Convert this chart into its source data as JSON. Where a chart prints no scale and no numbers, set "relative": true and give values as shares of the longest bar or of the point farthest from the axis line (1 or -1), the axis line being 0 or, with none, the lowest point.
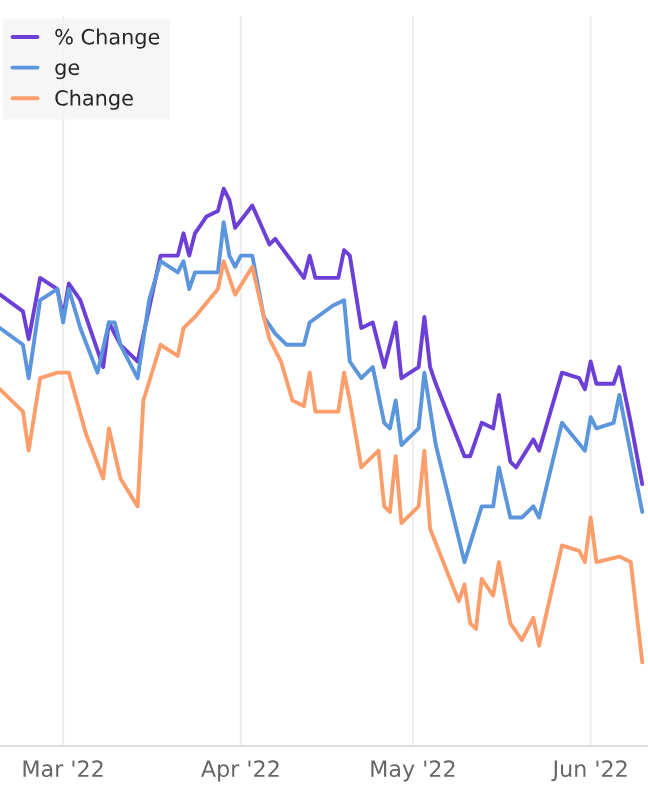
{
  "chart_data": {
    "type": "line",
    "relative": true,
    "grid": "x",
    "legend": "top left",
    "marker": "none",
    "line_style": "solid",
    "xlim": [
      "2022-02-18",
      "2022-06-11"
    ],
    "xticks": [
      {
        "value": "2022-03-01",
        "label": "Mar '22"
      },
      {
        "value": "2022-04-01",
        "label": "Apr '22"
      },
      {
        "value": "2022-05-01",
        "label": "May '22"
      },
      {
        "value": "2022-06-01",
        "label": "Jun '22"
      }
    ],
    "series": [
      {
        "name": "% Change",
        "color": "#6c3fd6",
        "x": [
          "2022-02-18",
          "2022-02-22",
          "2022-02-23",
          "2022-02-25",
          "2022-02-28",
          "2022-03-01",
          "2022-03-02",
          "2022-03-04",
          "2022-03-08",
          "2022-03-09",
          "2022-03-11",
          "2022-03-14",
          "2022-03-18",
          "2022-03-21",
          "2022-03-22",
          "2022-03-23",
          "2022-03-24",
          "2022-03-26",
          "2022-03-28",
          "2022-03-29",
          "2022-03-30",
          "2022-03-31",
          "2022-04-03",
          "2022-04-06",
          "2022-04-07",
          "2022-04-12",
          "2022-04-13",
          "2022-04-14",
          "2022-04-18",
          "2022-04-19",
          "2022-04-20",
          "2022-04-22",
          "2022-04-24",
          "2022-04-26",
          "2022-04-28",
          "2022-04-29",
          "2022-05-02",
          "2022-05-03",
          "2022-05-04",
          "2022-05-05",
          "2022-05-10",
          "2022-05-11",
          "2022-05-13",
          "2022-05-15",
          "2022-05-16",
          "2022-05-18",
          "2022-05-19",
          "2022-05-22",
          "2022-05-23",
          "2022-05-27",
          "2022-05-30",
          "2022-05-31",
          "2022-06-01",
          "2022-06-02",
          "2022-06-05",
          "2022-06-06",
          "2022-06-08",
          "2022-06-10"
        ],
        "values": [
          0.81,
          0.78,
          0.73,
          0.84,
          0.82,
          0.77,
          0.83,
          0.8,
          0.68,
          0.76,
          0.72,
          0.69,
          0.88,
          0.88,
          0.92,
          0.88,
          0.92,
          0.95,
          0.96,
          1,
          0.98,
          0.93,
          0.97,
          0.9,
          0.91,
          0.84,
          0.88,
          0.84,
          0.84,
          0.89,
          0.88,
          0.75,
          0.76,
          0.68,
          0.76,
          0.66,
          0.68,
          0.77,
          0.68,
          0.65,
          0.52,
          0.52,
          0.58,
          0.57,
          0.63,
          0.51,
          0.5,
          0.55,
          0.53,
          0.67,
          0.66,
          0.64,
          0.69,
          0.65,
          0.65,
          0.68,
          0.58,
          0.47
        ]
      },
      {
        "name": "ge",
        "color": "#5b95dd",
        "x": [
          "2022-02-18",
          "2022-02-22",
          "2022-02-23",
          "2022-02-25",
          "2022-02-28",
          "2022-03-01",
          "2022-03-02",
          "2022-03-04",
          "2022-03-07",
          "2022-03-09",
          "2022-03-10",
          "2022-03-11",
          "2022-03-14",
          "2022-03-16",
          "2022-03-18",
          "2022-03-21",
          "2022-03-22",
          "2022-03-23",
          "2022-03-24",
          "2022-03-28",
          "2022-03-29",
          "2022-03-30",
          "2022-03-31",
          "2022-04-01",
          "2022-04-03",
          "2022-04-05",
          "2022-04-07",
          "2022-04-09",
          "2022-04-12",
          "2022-04-13",
          "2022-04-17",
          "2022-04-19",
          "2022-04-20",
          "2022-04-22",
          "2022-04-24",
          "2022-04-26",
          "2022-04-27",
          "2022-04-28",
          "2022-04-29",
          "2022-05-02",
          "2022-05-03",
          "2022-05-05",
          "2022-05-10",
          "2022-05-13",
          "2022-05-15",
          "2022-05-16",
          "2022-05-18",
          "2022-05-20",
          "2022-05-22",
          "2022-05-23",
          "2022-05-27",
          "2022-05-31",
          "2022-06-01",
          "2022-06-02",
          "2022-06-05",
          "2022-06-06",
          "2022-06-10"
        ],
        "values": [
          0.75,
          0.72,
          0.66,
          0.8,
          0.82,
          0.76,
          0.82,
          0.75,
          0.67,
          0.76,
          0.76,
          0.72,
          0.66,
          0.8,
          0.87,
          0.85,
          0.87,
          0.82,
          0.85,
          0.85,
          0.94,
          0.88,
          0.86,
          0.88,
          0.88,
          0.77,
          0.74,
          0.72,
          0.72,
          0.76,
          0.79,
          0.8,
          0.69,
          0.66,
          0.68,
          0.58,
          0.57,
          0.62,
          0.54,
          0.57,
          0.67,
          0.54,
          0.33,
          0.43,
          0.43,
          0.5,
          0.41,
          0.41,
          0.43,
          0.41,
          0.58,
          0.53,
          0.59,
          0.57,
          0.58,
          0.63,
          0.42
        ]
      },
      {
        "name": "Change",
        "color": "#fc9e6c",
        "x": [
          "2022-02-18",
          "2022-02-22",
          "2022-02-23",
          "2022-02-25",
          "2022-02-28",
          "2022-03-02",
          "2022-03-05",
          "2022-03-08",
          "2022-03-09",
          "2022-03-11",
          "2022-03-14",
          "2022-03-15",
          "2022-03-18",
          "2022-03-21",
          "2022-03-22",
          "2022-03-24",
          "2022-03-28",
          "2022-03-29",
          "2022-03-30",
          "2022-03-31",
          "2022-04-03",
          "2022-04-05",
          "2022-04-06",
          "2022-04-08",
          "2022-04-10",
          "2022-04-12",
          "2022-04-13",
          "2022-04-14",
          "2022-04-18",
          "2022-04-19",
          "2022-04-20",
          "2022-04-22",
          "2022-04-25",
          "2022-04-26",
          "2022-04-27",
          "2022-04-28",
          "2022-04-29",
          "2022-05-02",
          "2022-05-03",
          "2022-05-04",
          "2022-05-09",
          "2022-05-10",
          "2022-05-11",
          "2022-05-12",
          "2022-05-13",
          "2022-05-15",
          "2022-05-16",
          "2022-05-18",
          "2022-05-20",
          "2022-05-22",
          "2022-05-23",
          "2022-05-27",
          "2022-05-30",
          "2022-05-31",
          "2022-06-01",
          "2022-06-02",
          "2022-06-06",
          "2022-06-08",
          "2022-06-10"
        ],
        "values": [
          0.64,
          0.6,
          0.53,
          0.66,
          0.67,
          0.67,
          0.56,
          0.48,
          0.57,
          0.48,
          0.43,
          0.62,
          0.72,
          0.7,
          0.75,
          0.77,
          0.82,
          0.87,
          0.84,
          0.81,
          0.86,
          0.77,
          0.73,
          0.69,
          0.62,
          0.61,
          0.67,
          0.6,
          0.6,
          0.67,
          0.62,
          0.5,
          0.53,
          0.43,
          0.42,
          0.52,
          0.4,
          0.43,
          0.53,
          0.39,
          0.26,
          0.29,
          0.22,
          0.21,
          0.3,
          0.27,
          0.33,
          0.22,
          0.19,
          0.23,
          0.18,
          0.36,
          0.35,
          0.33,
          0.41,
          0.33,
          0.34,
          0.33,
          0.15
        ]
      }
    ]
  }
}
